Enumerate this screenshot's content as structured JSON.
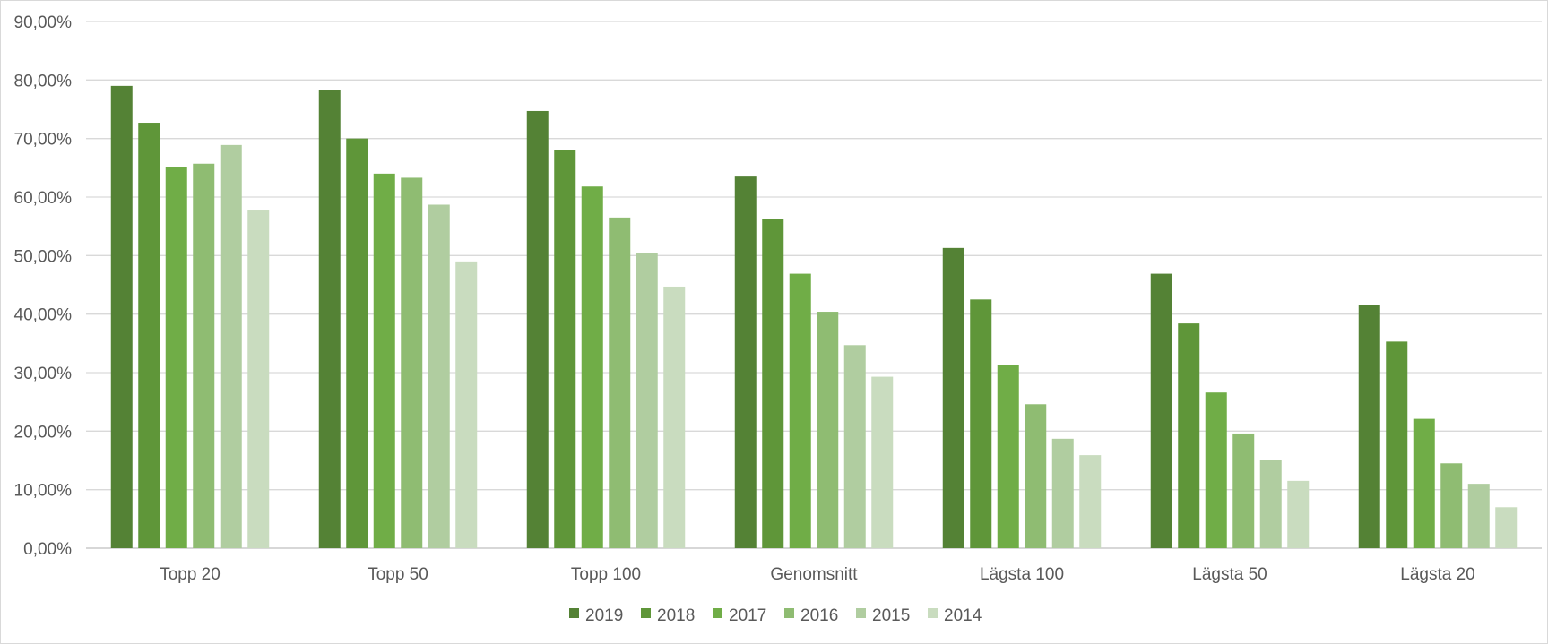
{
  "chart_data": {
    "type": "bar",
    "categories": [
      "Topp 20",
      "Topp 50",
      "Topp 100",
      "Genomsnitt",
      "Lägsta 100",
      "Lägsta 50",
      "Lägsta 20"
    ],
    "series": [
      {
        "name": "2019",
        "color": "#548235",
        "values": [
          79.0,
          78.3,
          74.7,
          63.5,
          51.3,
          46.9,
          41.6
        ]
      },
      {
        "name": "2018",
        "color": "#5f9639",
        "values": [
          72.7,
          70.0,
          68.1,
          56.2,
          42.5,
          38.4,
          35.3
        ]
      },
      {
        "name": "2017",
        "color": "#70ad47",
        "values": [
          65.2,
          64.0,
          61.8,
          46.9,
          31.3,
          26.6,
          22.1
        ]
      },
      {
        "name": "2016",
        "color": "#8fbc72",
        "values": [
          65.7,
          63.3,
          56.5,
          40.4,
          24.6,
          19.6,
          14.5
        ]
      },
      {
        "name": "2015",
        "color": "#b0cda0",
        "values": [
          68.9,
          58.7,
          50.5,
          34.7,
          18.7,
          15.0,
          11.0
        ]
      },
      {
        "name": "2014",
        "color": "#c9dcbf",
        "values": [
          57.7,
          49.0,
          44.7,
          29.3,
          15.9,
          11.5,
          7.0
        ]
      }
    ],
    "yticks": [
      "0,00%",
      "10,00%",
      "20,00%",
      "30,00%",
      "40,00%",
      "50,00%",
      "60,00%",
      "70,00%",
      "80,00%",
      "90,00%"
    ],
    "ylim": [
      0,
      90
    ],
    "grid": true,
    "legend_position": "bottom"
  }
}
